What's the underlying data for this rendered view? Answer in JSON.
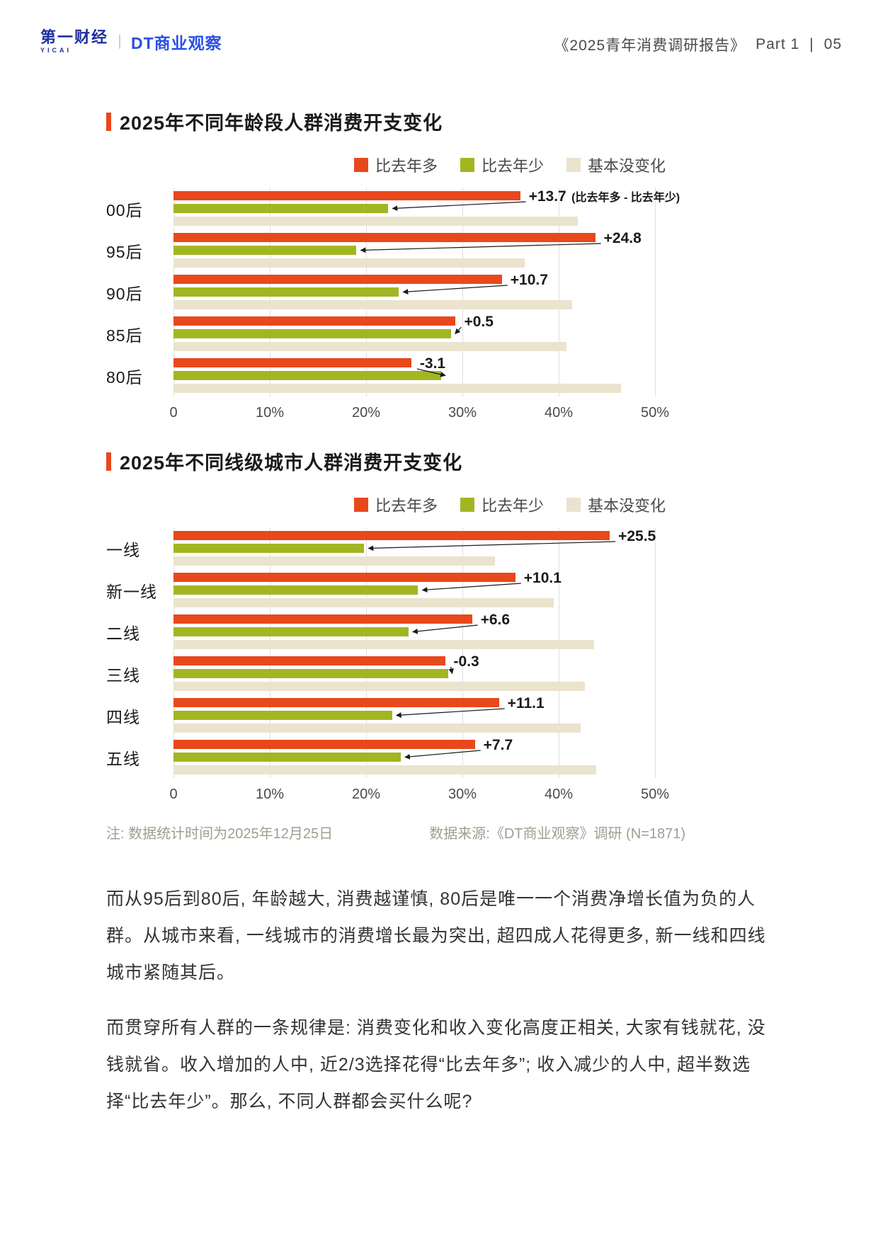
{
  "header": {
    "yicai_logo": "第一财经",
    "yicai_sub": "YICAI",
    "dt_logo": "DT商业观察",
    "report_title": "《2025青年消费调研报告》",
    "part_label": "Part 1",
    "separator": "|",
    "page_number": "05"
  },
  "colors": {
    "more": "#E8481C",
    "less": "#A2B622",
    "same": "#EBE3CD",
    "title_bar": "#E8481C",
    "gridline": "#E0DFDC",
    "note_text": "#A29D90",
    "arrow": "#1a1a1a"
  },
  "chart_data": [
    {
      "type": "bar",
      "orientation": "horizontal",
      "title": "2025年不同年龄段人群消费开支变化",
      "legend": [
        "比去年多",
        "比去年少",
        "基本没变化"
      ],
      "x_ticks": [
        "0",
        "10%",
        "20%",
        "30%",
        "40%",
        "50%"
      ],
      "x_max": 50,
      "unit": "%",
      "categories": [
        "00后",
        "95后",
        "90后",
        "85后",
        "80后"
      ],
      "series": [
        {
          "name": "比去年多",
          "key": "more",
          "values": [
            36.0,
            43.8,
            34.1,
            29.3,
            24.7
          ]
        },
        {
          "name": "比去年少",
          "key": "less",
          "values": [
            22.3,
            19.0,
            23.4,
            28.8,
            27.8
          ]
        },
        {
          "name": "基本没变化",
          "key": "same",
          "values": [
            42.0,
            36.5,
            41.4,
            40.8,
            46.5
          ]
        }
      ],
      "annotations": [
        "+13.7",
        "+24.8",
        "+10.7",
        "+0.5",
        "-3.1"
      ],
      "annotation_suffixes": [
        "(比去年多 - 比去年少)",
        "",
        "",
        "",
        ""
      ]
    },
    {
      "type": "bar",
      "orientation": "horizontal",
      "title": "2025年不同线级城市人群消费开支变化",
      "legend": [
        "比去年多",
        "比去年少",
        "基本没变化"
      ],
      "x_ticks": [
        "0",
        "10%",
        "20%",
        "30%",
        "40%",
        "50%"
      ],
      "x_max": 50,
      "unit": "%",
      "categories": [
        "一线",
        "新一线",
        "二线",
        "三线",
        "四线",
        "五线"
      ],
      "series": [
        {
          "name": "比去年多",
          "key": "more",
          "values": [
            45.3,
            35.5,
            31.0,
            28.2,
            33.8,
            31.3
          ]
        },
        {
          "name": "比去年少",
          "key": "less",
          "values": [
            19.8,
            25.4,
            24.4,
            28.5,
            22.7,
            23.6
          ]
        },
        {
          "name": "基本没变化",
          "key": "same",
          "values": [
            33.4,
            39.5,
            43.7,
            42.7,
            42.3,
            43.9
          ]
        }
      ],
      "annotations": [
        "+25.5",
        "+10.1",
        "+6.6",
        "-0.3",
        "+11.1",
        "+7.7"
      ],
      "annotation_suffixes": [
        "",
        "",
        "",
        "",
        "",
        ""
      ]
    }
  ],
  "footnotes": {
    "note": "注: 数据统计时间为2025年12月25日",
    "source": "数据来源:《DT商业观察》调研 (N=1871)"
  },
  "paragraphs": [
    "而从95后到80后, 年龄越大, 消费越谨慎, 80后是唯一一个消费净增长值为负的人群。从城市来看, 一线城市的消费增长最为突出, 超四成人花得更多, 新一线和四线城市紧随其后。",
    "而贯穿所有人群的一条规律是: 消费变化和收入变化高度正相关, 大家有钱就花, 没钱就省。收入增加的人中, 近2/3选择花得“比去年多”; 收入减少的人中, 超半数选择“比去年少”。那么, 不同人群都会买什么呢?"
  ]
}
